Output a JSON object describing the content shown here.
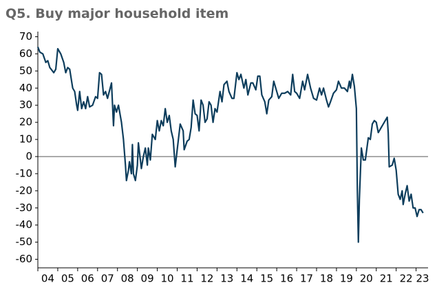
{
  "chart_data": {
    "type": "line",
    "title": "Q5. Buy major household item",
    "xlim": [
      2004,
      2023.6
    ],
    "ylim": [
      -65,
      73
    ],
    "xticks": [
      {
        "value": 2004,
        "label": "04"
      },
      {
        "value": 2005,
        "label": "05"
      },
      {
        "value": 2006,
        "label": "06"
      },
      {
        "value": 2007,
        "label": "07"
      },
      {
        "value": 2008,
        "label": "08"
      },
      {
        "value": 2009,
        "label": "09"
      },
      {
        "value": 2010,
        "label": "10"
      },
      {
        "value": 2011,
        "label": "11"
      },
      {
        "value": 2012,
        "label": "12"
      },
      {
        "value": 2013,
        "label": "13"
      },
      {
        "value": 2014,
        "label": "14"
      },
      {
        "value": 2015,
        "label": "15"
      },
      {
        "value": 2016,
        "label": "16"
      },
      {
        "value": 2017,
        "label": "17"
      },
      {
        "value": 2018,
        "label": "18"
      },
      {
        "value": 2019,
        "label": "19"
      },
      {
        "value": 2020,
        "label": "20"
      },
      {
        "value": 2021,
        "label": "21"
      },
      {
        "value": 2022,
        "label": "22"
      },
      {
        "value": 2023,
        "label": "23"
      }
    ],
    "yticks": [
      70,
      60,
      50,
      40,
      30,
      20,
      10,
      0,
      -10,
      -20,
      -30,
      -40,
      -50,
      -60
    ],
    "x": [
      2004.0,
      2004.1,
      2004.25,
      2004.4,
      2004.5,
      2004.6,
      2004.8,
      2004.9,
      2005.0,
      2005.15,
      2005.3,
      2005.4,
      2005.5,
      2005.6,
      2005.75,
      2005.85,
      2005.95,
      2006.0,
      2006.1,
      2006.2,
      2006.3,
      2006.4,
      2006.5,
      2006.6,
      2006.75,
      2006.9,
      2007.0,
      2007.1,
      2007.2,
      2007.3,
      2007.4,
      2007.5,
      2007.7,
      2007.8,
      2007.85,
      2007.95,
      2008.05,
      2008.2,
      2008.3,
      2008.4,
      2008.45,
      2008.55,
      2008.6,
      2008.7,
      2008.75,
      2008.8,
      2008.9,
      2009.0,
      2009.05,
      2009.2,
      2009.3,
      2009.4,
      2009.5,
      2009.55,
      2009.65,
      2009.75,
      2009.9,
      2010.0,
      2010.1,
      2010.2,
      2010.3,
      2010.4,
      2010.5,
      2010.6,
      2010.7,
      2010.8,
      2010.9,
      2011.0,
      2011.15,
      2011.3,
      2011.35,
      2011.5,
      2011.6,
      2011.7,
      2011.8,
      2011.9,
      2012.0,
      2012.1,
      2012.2,
      2012.3,
      2012.4,
      2012.5,
      2012.6,
      2012.7,
      2012.8,
      2012.9,
      2013.0,
      2013.15,
      2013.25,
      2013.35,
      2013.5,
      2013.6,
      2013.75,
      2013.85,
      2014.0,
      2014.1,
      2014.2,
      2014.35,
      2014.45,
      2014.55,
      2014.7,
      2014.8,
      2014.95,
      2015.05,
      2015.15,
      2015.25,
      2015.4,
      2015.5,
      2015.6,
      2015.75,
      2015.85,
      2016.0,
      2016.1,
      2016.25,
      2016.4,
      2016.55,
      2016.7,
      2016.8,
      2016.9,
      2017.0,
      2017.15,
      2017.3,
      2017.4,
      2017.55,
      2017.7,
      2017.85,
      2018.0,
      2018.15,
      2018.25,
      2018.35,
      2018.5,
      2018.6,
      2018.7,
      2018.85,
      2019.0,
      2019.1,
      2019.25,
      2019.4,
      2019.55,
      2019.65,
      2019.7,
      2019.8,
      2019.9,
      2020.0,
      2020.05,
      2020.1,
      2020.15,
      2020.25,
      2020.35,
      2020.45,
      2020.6,
      2020.7,
      2020.8,
      2020.9,
      2021.0,
      2021.1,
      2021.25,
      2021.4,
      2021.55,
      2021.6,
      2021.65,
      2021.8,
      2021.9,
      2022.0,
      2022.1,
      2022.2,
      2022.3,
      2022.35,
      2022.45,
      2022.55,
      2022.65,
      2022.75,
      2022.85,
      2022.95,
      2023.05,
      2023.15,
      2023.25,
      2023.35
    ],
    "series": [
      {
        "color": "#0d3d5c",
        "values": [
          64,
          61,
          60,
          55,
          56,
          52,
          49,
          51,
          63,
          60,
          55,
          49,
          52,
          51,
          40,
          38,
          30,
          27,
          38,
          28,
          32,
          28,
          35,
          29,
          30,
          35,
          34,
          49,
          48,
          36,
          38,
          34,
          43,
          18,
          30,
          26,
          30,
          20,
          10,
          -5,
          -14,
          -8,
          -3,
          -10,
          7,
          -10,
          -14,
          -5,
          8,
          -7,
          0,
          5,
          -5,
          5,
          -2,
          13,
          10,
          21,
          15,
          21,
          18,
          28,
          20,
          24,
          15,
          10,
          -6,
          4,
          19,
          15,
          4,
          9,
          10,
          17,
          33,
          25,
          24,
          15,
          33,
          30,
          20,
          22,
          32,
          30,
          20,
          28,
          26,
          38,
          32,
          42,
          44,
          38,
          34,
          34,
          49,
          45,
          48,
          40,
          45,
          36,
          43,
          43,
          39,
          47,
          47,
          36,
          32,
          25,
          33,
          35,
          44,
          38,
          34,
          37,
          37,
          38,
          36,
          48,
          38,
          37,
          34,
          44,
          39,
          48,
          40,
          34,
          33,
          40,
          36,
          40,
          33,
          29,
          32,
          37,
          39,
          44,
          40,
          40,
          38,
          44,
          40,
          48,
          41,
          28,
          -20,
          -50,
          -25,
          5,
          -2,
          -2,
          11,
          10,
          19,
          21,
          20,
          14,
          17,
          20,
          23,
          14,
          -6,
          -5,
          -1,
          -8,
          -22,
          -25,
          -20,
          -28,
          -22,
          -17,
          -26,
          -22,
          -30,
          -30,
          -35,
          -31,
          -31,
          -33
        ]
      }
    ]
  }
}
